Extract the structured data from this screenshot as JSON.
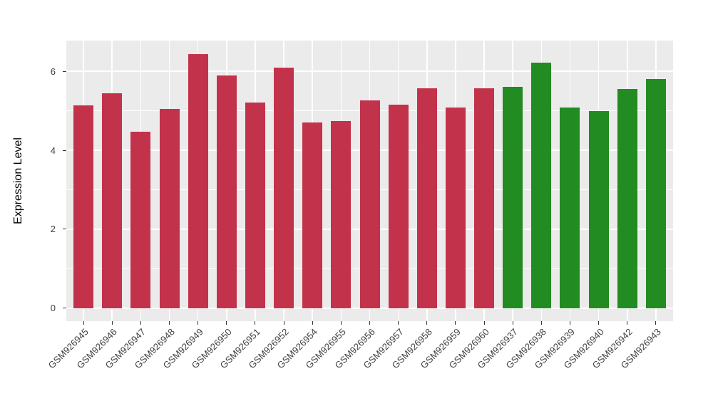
{
  "chart_data": {
    "type": "bar",
    "title": "",
    "xlabel": "",
    "ylabel": "Expression Level",
    "categories": [
      "GSM926945",
      "GSM926946",
      "GSM926947",
      "GSM926948",
      "GSM926949",
      "GSM926950",
      "GSM926951",
      "GSM926952",
      "GSM926954",
      "GSM926955",
      "GSM926956",
      "GSM926957",
      "GSM926958",
      "GSM926959",
      "GSM926960",
      "GSM926937",
      "GSM926938",
      "GSM926939",
      "GSM926940",
      "GSM926942",
      "GSM926943"
    ],
    "values": [
      5.14,
      5.44,
      4.48,
      5.05,
      6.44,
      5.9,
      5.22,
      6.09,
      4.71,
      4.75,
      5.27,
      5.16,
      5.58,
      5.09,
      5.57,
      5.6,
      6.23,
      5.08,
      5.0,
      5.56,
      5.8
    ],
    "bar_colors": [
      "#C3324B",
      "#C3324B",
      "#C3324B",
      "#C3324B",
      "#C3324B",
      "#C3324B",
      "#C3324B",
      "#C3324B",
      "#C3324B",
      "#C3324B",
      "#C3324B",
      "#C3324B",
      "#C3324B",
      "#C3324B",
      "#C3324B",
      "#228B22",
      "#228B22",
      "#228B22",
      "#228B22",
      "#228B22",
      "#228B22"
    ],
    "color_groups": [
      {
        "color": "#C3324B",
        "sample_prefix": "GSM926945-GSM926960",
        "count": 15
      },
      {
        "color": "#228B22",
        "sample_prefix": "GSM926937-GSM926943",
        "count": 6
      }
    ],
    "yticks": [
      0,
      2,
      4,
      6
    ],
    "yticks_minor": [
      1,
      3,
      5
    ],
    "ylim": [
      -0.33,
      6.79
    ],
    "grid": true,
    "legend_position": "none",
    "panel_background": "#EBEBEB",
    "grid_color": "#FFFFFF",
    "axis_text_color": "#404040",
    "tick_mark_color": "#333333"
  }
}
